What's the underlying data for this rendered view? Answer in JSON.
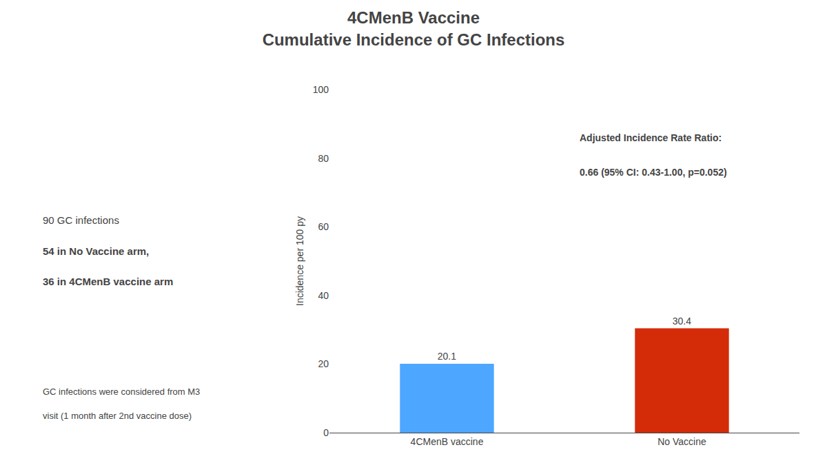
{
  "chart_data": {
    "type": "bar",
    "title": "4CMenB Vaccine",
    "subtitle": "Cumulative Incidence of GC Infections",
    "categories": [
      "4CMenB vaccine",
      "No Vaccine"
    ],
    "values": [
      20.1,
      30.4
    ],
    "colors": [
      "#4da6ff",
      "#d42b08"
    ],
    "ylabel": "Incidence per 100 py",
    "ylim": [
      0,
      100
    ],
    "yticks": [
      0,
      20,
      40,
      60,
      80,
      100
    ],
    "data_labels": true,
    "grid": false,
    "annotations": [
      "Adjusted Incidence Rate Ratio:",
      "0.66 (95% CI: 0.43-1.00, p=0.052)",
      "90 GC infections",
      "54 in No Vaccine arm,",
      "36 in 4CMenB vaccine arm",
      "GC infections were considered from M3",
      "visit (1 month after 2nd vaccine dose)"
    ]
  }
}
